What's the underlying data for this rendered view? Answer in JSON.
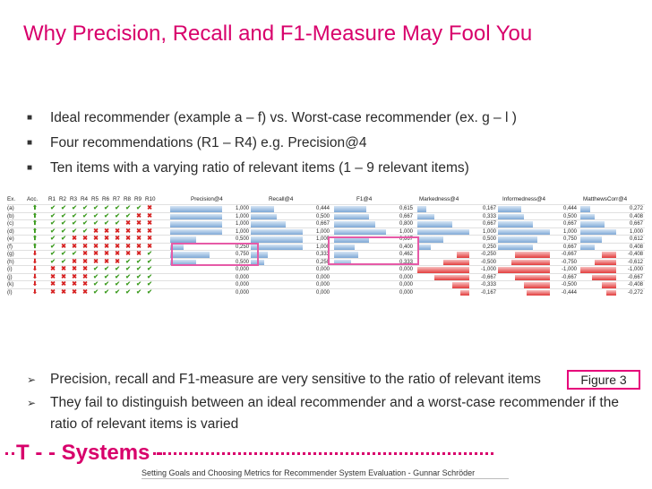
{
  "title": "Why Precision, Recall and F1-Measure May Fool You",
  "bullets_top": [
    "Ideal recommender (example a – f) vs. Worst-case recommender (ex. g – l )",
    "Four recommendations (R1 – R4) e.g. Precision@4",
    "Ten items with a varying ratio of relevant items (1 – 9 relevant items)"
  ],
  "table": {
    "headers": [
      "Ex.",
      "Acc.",
      "R1",
      "R2",
      "R3",
      "R4",
      "R5",
      "R6",
      "R7",
      "R8",
      "R9",
      "R10",
      "Precision@4",
      "Recall@4",
      "F1@4",
      "Markedness@4",
      "Informedness@4",
      "MatthewsCorr@4"
    ],
    "rows": [
      {
        "ex": "(a)",
        "acc": "up",
        "marks": [
          "c",
          "c",
          "c",
          "c",
          "c",
          "c",
          "c",
          "c",
          "c",
          "x"
        ],
        "vals": [
          "1,000",
          "0,444",
          "0,615",
          "0,167",
          "0,444",
          "0,272"
        ]
      },
      {
        "ex": "(b)",
        "acc": "up",
        "marks": [
          "c",
          "c",
          "c",
          "c",
          "c",
          "c",
          "c",
          "c",
          "x",
          "x"
        ],
        "vals": [
          "1,000",
          "0,500",
          "0,667",
          "0,333",
          "0,500",
          "0,408"
        ]
      },
      {
        "ex": "(c)",
        "acc": "up",
        "marks": [
          "c",
          "c",
          "c",
          "c",
          "c",
          "c",
          "c",
          "x",
          "x",
          "x"
        ],
        "vals": [
          "1,000",
          "0,667",
          "0,800",
          "0,667",
          "0,667",
          "0,667"
        ]
      },
      {
        "ex": "(d)",
        "acc": "up",
        "marks": [
          "c",
          "c",
          "c",
          "c",
          "x",
          "x",
          "x",
          "x",
          "x",
          "x"
        ],
        "vals": [
          "1,000",
          "1,000",
          "1,000",
          "1,000",
          "1,000",
          "1,000"
        ]
      },
      {
        "ex": "(e)",
        "acc": "up",
        "marks": [
          "c",
          "c",
          "x",
          "x",
          "x",
          "x",
          "x",
          "x",
          "x",
          "x"
        ],
        "vals": [
          "0,500",
          "1,000",
          "0,667",
          "0,500",
          "0,750",
          "0,612"
        ]
      },
      {
        "ex": "(f)",
        "acc": "up",
        "marks": [
          "c",
          "x",
          "x",
          "x",
          "x",
          "x",
          "x",
          "x",
          "x",
          "x"
        ],
        "vals": [
          "0,250",
          "1,000",
          "0,400",
          "0,250",
          "0,667",
          "0,408"
        ]
      },
      {
        "ex": "(g)",
        "acc": "down",
        "marks": [
          "c",
          "c",
          "c",
          "x",
          "x",
          "x",
          "x",
          "x",
          "x",
          "c"
        ],
        "vals": [
          "0,750",
          "0,333",
          "0,462",
          "-0,250",
          "-0,667",
          "-0,408"
        ]
      },
      {
        "ex": "(h)",
        "acc": "down",
        "marks": [
          "c",
          "c",
          "x",
          "x",
          "x",
          "x",
          "x",
          "c",
          "c",
          "c"
        ],
        "vals": [
          "0,500",
          "0,250",
          "0,333",
          "-0,500",
          "-0,750",
          "-0,612"
        ]
      },
      {
        "ex": "(i)",
        "acc": "down",
        "marks": [
          "x",
          "x",
          "x",
          "x",
          "c",
          "c",
          "c",
          "c",
          "c",
          "c"
        ],
        "vals": [
          "0,000",
          "0,000",
          "0,000",
          "-1,000",
          "-1,000",
          "-1,000"
        ]
      },
      {
        "ex": "(j)",
        "acc": "down",
        "marks": [
          "x",
          "x",
          "x",
          "x",
          "c",
          "c",
          "c",
          "c",
          "c",
          "c"
        ],
        "vals": [
          "0,000",
          "0,000",
          "0,000",
          "-0,667",
          "-0,667",
          "-0,667"
        ]
      },
      {
        "ex": "(k)",
        "acc": "down",
        "marks": [
          "x",
          "x",
          "x",
          "x",
          "c",
          "c",
          "c",
          "c",
          "c",
          "c"
        ],
        "vals": [
          "0,000",
          "0,000",
          "0,000",
          "-0,333",
          "-0,500",
          "-0,408"
        ]
      },
      {
        "ex": "(l)",
        "acc": "down",
        "marks": [
          "x",
          "x",
          "x",
          "x",
          "c",
          "c",
          "c",
          "c",
          "c",
          "c"
        ],
        "vals": [
          "0,000",
          "0,000",
          "0,000",
          "-0,167",
          "-0,444",
          "-0,272"
        ]
      }
    ]
  },
  "figure_label": "Figure 3",
  "bullets_bottom": [
    "Precision, recall and F1-measure are very sensitive to the ratio of relevant items",
    "They fail to distinguish between an ideal recommender and a worst-case recommender if the ratio of relevant items is varied"
  ],
  "brand": "T - - Systems -",
  "footer": "Setting Goals and Choosing Metrics for Recommender System Evaluation - Gunnar Schröder",
  "colors": {
    "accent": "#d8006b",
    "check": "#3a9a1d",
    "cross": "#d62020",
    "up": "#3a9a1d",
    "down": "#d62020"
  }
}
